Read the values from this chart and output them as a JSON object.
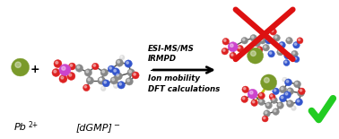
{
  "background_color": "#ffffff",
  "text_lines_top": [
    "ESI-MS/MS",
    "IRMPD"
  ],
  "text_lines_bottom": [
    "Ion mobility",
    "DFT calculations"
  ],
  "label_pb": "Pb",
  "label_pb_super": "2+",
  "label_dgmp": "[dGMP]",
  "label_dgmp_super": "−",
  "cross_color": "#dd1111",
  "check_color": "#22cc22",
  "pb_sphere_color": "#7a9a2a",
  "phosphate_color": "#cc44cc",
  "oxygen_color": "#dd2222",
  "carbon_color": "#888888",
  "nitrogen_color": "#3355cc",
  "hydrogen_color": "#dddddd",
  "white_color": "#ffffff",
  "bond_color": "#555555",
  "fig_width": 3.78,
  "fig_height": 1.55,
  "dpi": 100
}
